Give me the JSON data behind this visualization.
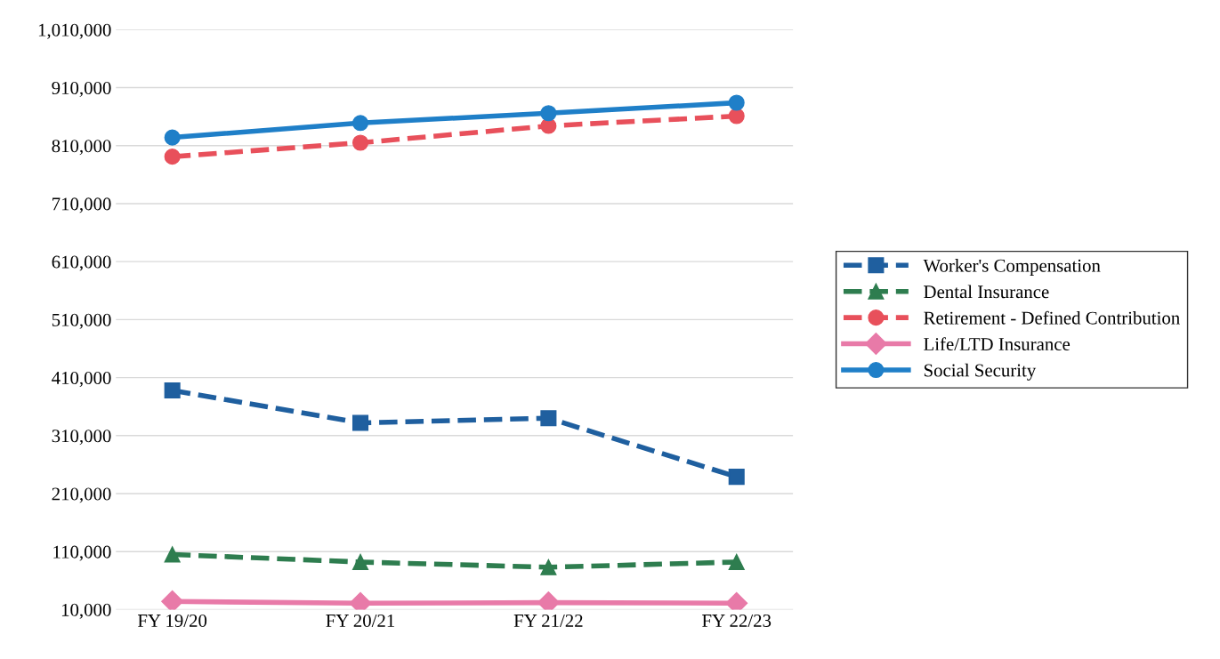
{
  "chart_data": {
    "type": "line",
    "categories": [
      "FY 19/20",
      "FY 20/21",
      "FY 21/22",
      "FY 22/23"
    ],
    "series": [
      {
        "name": "Worker's Compensation",
        "color": "#1f5f9f",
        "values": [
          388000,
          332000,
          340000,
          239000
        ],
        "marker": "square",
        "line_style": "dashed"
      },
      {
        "name": "Dental Insurance",
        "color": "#2e7d4f",
        "values": [
          105000,
          92000,
          83000,
          92000
        ],
        "marker": "triangle",
        "line_style": "dashed"
      },
      {
        "name": "Retirement - Defined Contribution",
        "color": "#e8505b",
        "values": [
          791000,
          815000,
          844000,
          861000
        ],
        "marker": "circle",
        "line_style": "dashed"
      },
      {
        "name": "Life/LTD Insurance",
        "color": "#e87aa8",
        "values": [
          24000,
          21000,
          22000,
          21000
        ],
        "marker": "diamond",
        "line_style": "solid"
      },
      {
        "name": "Social Security",
        "color": "#1f7fc8",
        "values": [
          824000,
          849000,
          866000,
          884000
        ],
        "marker": "circle",
        "line_style": "solid"
      }
    ],
    "ylim": [
      10000,
      1010000
    ],
    "yticks": [
      {
        "value": 10000,
        "label": "10,000"
      },
      {
        "value": 110000,
        "label": "110,000"
      },
      {
        "value": 210000,
        "label": "210,000"
      },
      {
        "value": 310000,
        "label": "310,000"
      },
      {
        "value": 410000,
        "label": "410,000"
      },
      {
        "value": 510000,
        "label": "510,000"
      },
      {
        "value": 610000,
        "label": "610,000"
      },
      {
        "value": 710000,
        "label": "710,000"
      },
      {
        "value": 810000,
        "label": "810,000"
      },
      {
        "value": 910000,
        "label": "910,000"
      },
      {
        "value": 1010000,
        "label": "1,010,000"
      }
    ],
    "grid": "y",
    "legend": "right"
  }
}
